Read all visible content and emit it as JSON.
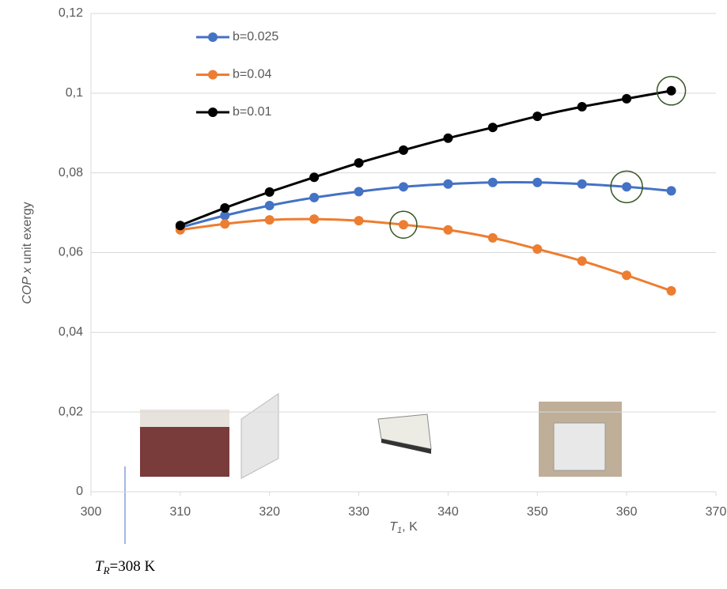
{
  "chart_data": {
    "type": "line",
    "x_label": {
      "symbol": "T",
      "subscript": "1",
      "text": ", K"
    },
    "y_label": {
      "italic": "COP x",
      "text": " unit exergy"
    },
    "annotation": {
      "symbol": "T",
      "subscript": "R",
      "text": "=308 K"
    },
    "x": [
      310,
      315,
      320,
      325,
      330,
      335,
      340,
      345,
      350,
      355,
      360,
      365
    ],
    "series": [
      {
        "name": "b=0.025",
        "color": "#4472c4",
        "values": [
          0.0663,
          0.0693,
          0.0718,
          0.0738,
          0.0753,
          0.0765,
          0.0772,
          0.0776,
          0.0776,
          0.0772,
          0.0765,
          0.0755
        ]
      },
      {
        "name": "b=0.04",
        "color": "#ed7d31",
        "values": [
          0.0657,
          0.0672,
          0.0682,
          0.0684,
          0.068,
          0.067,
          0.0657,
          0.0637,
          0.0609,
          0.0579,
          0.0543,
          0.0504
        ]
      },
      {
        "name": "b=0.01",
        "color": "#000000",
        "values": [
          0.0668,
          0.0712,
          0.0752,
          0.0789,
          0.0825,
          0.0857,
          0.0887,
          0.0914,
          0.0942,
          0.0966,
          0.0986,
          0.1006
        ]
      }
    ],
    "xlim": [
      300,
      370
    ],
    "xticks": [
      300,
      310,
      320,
      330,
      340,
      350,
      360,
      370
    ],
    "ylim": [
      0,
      0.12
    ],
    "yticks": [
      0,
      {
        "value": 0.02,
        "label": "0,02"
      },
      {
        "value": 0.04,
        "label": "0,04"
      },
      {
        "value": 0.06,
        "label": "0,06"
      },
      {
        "value": 0.08,
        "label": "0,08"
      },
      {
        "value": 0.1,
        "label": "0,1"
      },
      {
        "value": 0.12,
        "label": "0,12"
      }
    ],
    "grid": true
  }
}
